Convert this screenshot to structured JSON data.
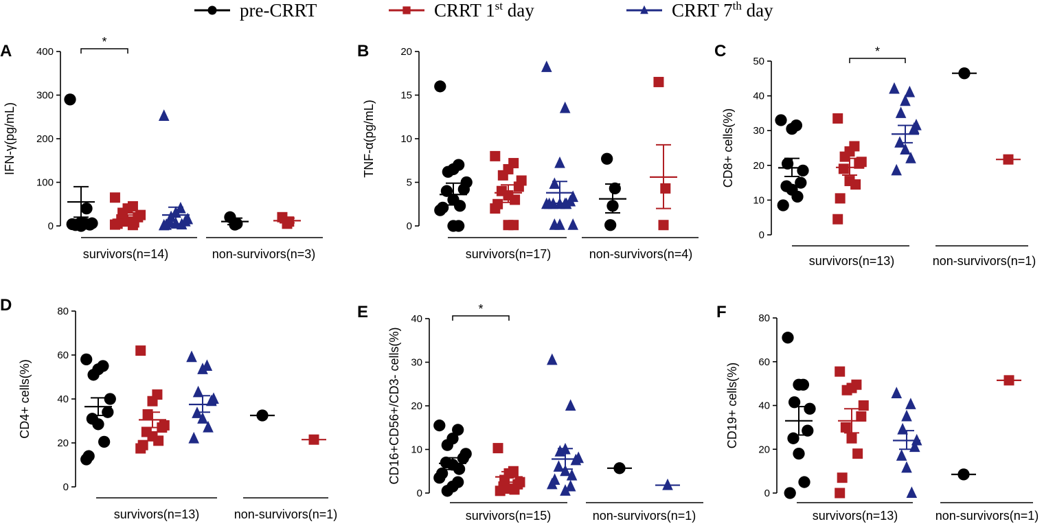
{
  "legend": {
    "items": [
      {
        "name": "pre-CRRT",
        "base": "pre-CRRT",
        "sup": "",
        "tail": "",
        "marker": "circle",
        "color": "#000000"
      },
      {
        "name": "CRRT 1st day",
        "base": "CRRT 1",
        "sup": "st",
        "tail": " day",
        "marker": "square",
        "color": "#b01e23"
      },
      {
        "name": "CRRT 7th day",
        "base": "CRRT 7",
        "sup": "th",
        "tail": " day",
        "marker": "triangle",
        "color": "#1f2a86"
      }
    ]
  },
  "chart_data": [
    {
      "panel": "A",
      "type": "scatter",
      "ylabel": "IFN-γ(pg/mL)",
      "ylim": [
        0,
        400
      ],
      "yticks": [
        0,
        100,
        200,
        300,
        400
      ],
      "xgroups": [
        "survivors(n=14)",
        "non-survivors(n=3)"
      ],
      "significance": [
        {
          "from": 0,
          "to": 1,
          "label": "*"
        }
      ],
      "series": [
        {
          "name": "pre-CRRT",
          "group": "survivors",
          "values": [
            290,
            5,
            8,
            3,
            6,
            3,
            2,
            0,
            40,
            4
          ],
          "mean": 55,
          "sem_low": 20,
          "sem_high": 90
        },
        {
          "name": "CRRT 1st day",
          "group": "survivors",
          "values": [
            65,
            45,
            40,
            30,
            25,
            20,
            15,
            10,
            8,
            5,
            3,
            2
          ],
          "mean": 15,
          "sem_low": 5,
          "sem_high": 25
        },
        {
          "name": "CRRT 7th day",
          "group": "survivors",
          "values": [
            252,
            40,
            30,
            20,
            15,
            10,
            8,
            5,
            3,
            2,
            1
          ],
          "mean": 25,
          "sem_low": 5,
          "sem_high": 43
        },
        {
          "name": "pre-CRRT",
          "group": "non-survivors",
          "values": [
            20,
            5,
            3
          ],
          "mean": 10,
          "sem_low": 3,
          "sem_high": 18
        },
        {
          "name": "CRRT 1st day",
          "group": "non-survivors",
          "values": [
            20,
            10,
            5
          ],
          "mean": 12,
          "sem_low": 7,
          "sem_high": 18
        }
      ]
    },
    {
      "panel": "B",
      "type": "scatter",
      "ylabel": "TNF-α(pg/mL)",
      "ylim": [
        0,
        20
      ],
      "yticks": [
        0,
        5,
        10,
        15,
        20
      ],
      "xgroups": [
        "survivors(n=17)",
        "non-survivors(n=4)"
      ],
      "significance": [],
      "series": [
        {
          "name": "pre-CRRT",
          "group": "survivors",
          "values": [
            16,
            7,
            6.5,
            6.2,
            5,
            4.2,
            4,
            3,
            2.3,
            2.1,
            1.8,
            0,
            0
          ],
          "mean": 3.6,
          "sem_low": 2.4,
          "sem_high": 4.9
        },
        {
          "name": "CRRT 1st day",
          "group": "survivors",
          "values": [
            8,
            7.2,
            6.5,
            5.8,
            5.2,
            4.5,
            4,
            3.5,
            3,
            2.5,
            2,
            0.1,
            0.1
          ],
          "mean": 3.8,
          "sem_low": 2.7,
          "sem_high": 4.7
        },
        {
          "name": "CRRT 7th day",
          "group": "survivors",
          "values": [
            18.2,
            13.5,
            7.2,
            4.8,
            3.3,
            2.8,
            2.5,
            2.5,
            2.5,
            2.5,
            2.5,
            2.5,
            0.1,
            0.1,
            0.1
          ],
          "mean": 3.8,
          "sem_low": 2.6,
          "sem_high": 5.1
        },
        {
          "name": "pre-CRRT",
          "group": "non-survivors",
          "values": [
            7.7,
            4.3,
            2.3,
            0.1
          ],
          "mean": 3.1,
          "sem_low": 1.5,
          "sem_high": 4.8
        },
        {
          "name": "CRRT 1st day",
          "group": "non-survivors",
          "values": [
            16.5,
            4.3,
            0.1
          ],
          "mean": 5.6,
          "sem_low": 2,
          "sem_high": 9.3
        }
      ]
    },
    {
      "panel": "C",
      "type": "scatter",
      "ylabel": "CD8+  cells(%)",
      "ylim": [
        0,
        50
      ],
      "yticks": [
        0,
        10,
        20,
        30,
        40,
        50
      ],
      "xgroups": [
        "survivors(n=13)",
        "non-survivors(n=1)"
      ],
      "significance": [
        {
          "from": 1,
          "to": 2,
          "label": "*"
        }
      ],
      "series": [
        {
          "name": "pre-CRRT",
          "group": "survivors",
          "values": [
            33,
            31.5,
            30.5,
            20.5,
            18.5,
            15,
            14,
            13,
            11,
            8.5
          ],
          "mean": 19.3,
          "sem_low": 16.8,
          "sem_high": 22
        },
        {
          "name": "CRRT 1st day",
          "group": "survivors",
          "values": [
            33.5,
            25.5,
            24,
            22.5,
            21,
            20.5,
            19,
            15.5,
            14.5,
            10.5,
            4.5
          ],
          "mean": 19.4,
          "sem_low": 17.2,
          "sem_high": 22
        },
        {
          "name": "CRRT 7th day",
          "group": "survivors",
          "values": [
            42,
            41,
            38.5,
            35,
            31.5,
            30.5,
            26.5,
            24.5,
            22,
            18.5
          ],
          "mean": 29,
          "sem_low": 26.5,
          "sem_high": 31.5
        },
        {
          "name": "pre-CRRT",
          "group": "non-survivors",
          "values": [
            46.5
          ],
          "mean": 46.5
        },
        {
          "name": "CRRT 1st day",
          "group": "non-survivors",
          "values": [
            21.7
          ],
          "mean": 21.7
        }
      ]
    },
    {
      "panel": "D",
      "type": "scatter",
      "ylabel": "CD4+  cells(%)",
      "ylim": [
        0,
        80
      ],
      "yticks": [
        0,
        20,
        40,
        60,
        80
      ],
      "xgroups": [
        "survivors(n=13)",
        "non-survivors(n=1)"
      ],
      "significance": [],
      "series": [
        {
          "name": "pre-CRRT",
          "group": "survivors",
          "values": [
            58,
            55,
            53.5,
            51,
            40,
            34,
            31,
            28.5,
            20.5,
            14,
            12.5
          ],
          "mean": 36.5,
          "sem_low": 32.5,
          "sem_high": 40.5
        },
        {
          "name": "CRRT 1st day",
          "group": "survivors",
          "values": [
            62,
            42,
            39,
            33,
            28,
            27,
            25,
            23,
            21,
            19,
            17.5
          ],
          "mean": 30.5,
          "sem_low": 27,
          "sem_high": 34
        },
        {
          "name": "CRRT 7th day",
          "group": "survivors",
          "values": [
            59,
            55,
            53.5,
            43,
            40,
            39,
            33.5,
            31,
            27,
            22
          ],
          "mean": 37.5,
          "sem_low": 34,
          "sem_high": 41.5
        },
        {
          "name": "pre-CRRT",
          "group": "non-survivors",
          "values": [
            32.5
          ],
          "mean": 32.5
        },
        {
          "name": "CRRT 1st day",
          "group": "non-survivors",
          "values": [
            21.5
          ],
          "mean": 21.5
        }
      ]
    },
    {
      "panel": "E",
      "type": "scatter",
      "ylabel": "CD16+CD56+/CD3- cells(%)",
      "ylim": [
        0,
        40
      ],
      "yticks": [
        0,
        10,
        20,
        30,
        40
      ],
      "xgroups": [
        "survivors(n=15)",
        "non-survivors(n=1)"
      ],
      "significance": [
        {
          "from": 0,
          "to": 1,
          "label": "*"
        }
      ],
      "series": [
        {
          "name": "pre-CRRT",
          "group": "survivors",
          "values": [
            15.5,
            14.5,
            12.5,
            11,
            9,
            8,
            7,
            6.5,
            5.5,
            4.5,
            3.5,
            2.5,
            1.5,
            0.5
          ],
          "mean": 6.8,
          "sem_low": 5.4,
          "sem_high": 8.1
        },
        {
          "name": "CRRT 1st day",
          "group": "survivors",
          "values": [
            10.3,
            5,
            4.5,
            3,
            2.5,
            2,
            1.5,
            1,
            0.8,
            0.5
          ],
          "mean": 3.7,
          "sem_low": 2.5,
          "sem_high": 4.9
        },
        {
          "name": "CRRT 7th day",
          "group": "survivors",
          "values": [
            30.5,
            20,
            10,
            9.5,
            8,
            7.5,
            6,
            5,
            4,
            3,
            2,
            1.5,
            0.5
          ],
          "mean": 7.8,
          "sem_low": 5.5,
          "sem_high": 10.2
        },
        {
          "name": "pre-CRRT",
          "group": "non-survivors",
          "values": [
            5.7
          ],
          "mean": 5.7
        },
        {
          "name": "CRRT 7th day",
          "group": "non-survivors",
          "values": [
            1.8
          ],
          "mean": 1.8
        }
      ]
    },
    {
      "panel": "F",
      "type": "scatter",
      "ylabel": "CD19+  cells(%)",
      "ylim": [
        0,
        80
      ],
      "yticks": [
        0,
        20,
        40,
        60,
        80
      ],
      "xgroups": [
        "survivors(n=13)",
        "non-survivors(n=1)"
      ],
      "significance": [],
      "series": [
        {
          "name": "pre-CRRT",
          "group": "survivors",
          "values": [
            71,
            49.5,
            49.5,
            41.5,
            38.5,
            28.5,
            25,
            18,
            5,
            0
          ],
          "mean": 33,
          "sem_low": 26.5,
          "sem_high": 39.5
        },
        {
          "name": "CRRT 1st day",
          "group": "survivors",
          "values": [
            55.5,
            49.5,
            48,
            47,
            40,
            35,
            30,
            25,
            18,
            7,
            0
          ],
          "mean": 33,
          "sem_low": 27.5,
          "sem_high": 38.5
        },
        {
          "name": "CRRT 7th day",
          "group": "survivors",
          "values": [
            45.5,
            40.5,
            35,
            29,
            24,
            21,
            17,
            11.5,
            0
          ],
          "mean": 24,
          "sem_low": 20,
          "sem_high": 28.5
        },
        {
          "name": "pre-CRRT",
          "group": "non-survivors",
          "values": [
            8.5
          ],
          "mean": 8.5
        },
        {
          "name": "CRRT 1st day",
          "group": "non-survivors",
          "values": [
            51.5
          ],
          "mean": 51.5
        }
      ]
    }
  ]
}
